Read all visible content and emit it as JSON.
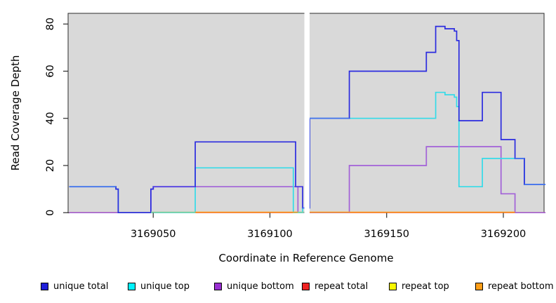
{
  "chart_data": {
    "type": "line",
    "subtype": "step-coverage",
    "title": "",
    "xlabel": "Coordinate in Reference Genome",
    "ylabel": "Read Coverage Depth",
    "x_axis": {
      "label": "Coordinate in Reference Genome",
      "ticks": [
        3169050,
        3169100,
        3169150,
        3169200
      ],
      "tick_labels": [
        "3169050",
        "3169100",
        "3169150",
        "3169200"
      ],
      "range": [
        3169014,
        3169218
      ]
    },
    "y_axis": {
      "label": "Read Coverage Depth",
      "ticks": [
        0,
        20,
        40,
        60,
        80
      ],
      "tick_labels": [
        "0",
        "20",
        "40",
        "60",
        "80"
      ],
      "range": [
        0,
        80
      ]
    },
    "panel_background": "#d9d9d9",
    "gap_band": {
      "x_from": 3169115,
      "x_to": 3169117,
      "color": "#ffffff"
    },
    "series": [
      {
        "name": "repeat top",
        "color": "#f0f000",
        "draw": true,
        "steps": [
          [
            3169014,
            0
          ],
          [
            3169218,
            0
          ]
        ]
      },
      {
        "name": "repeat total",
        "color": "#e25f7e",
        "draw": true,
        "steps": [
          [
            3169014,
            0
          ],
          [
            3169218,
            0
          ]
        ]
      },
      {
        "name": "repeat bottom",
        "color": "#ff9c1a",
        "draw": false,
        "steps": [
          [
            3169014,
            0
          ],
          [
            3169218,
            0
          ]
        ]
      },
      {
        "name": "unique bottom",
        "color": "#a261d8",
        "draw": true,
        "steps": [
          [
            3169014,
            0
          ],
          [
            3169049,
            10
          ],
          [
            3169050,
            11
          ],
          [
            3169112,
            0
          ],
          [
            3169134,
            20
          ],
          [
            3169167,
            28
          ],
          [
            3169199,
            8
          ],
          [
            3169205,
            0
          ],
          [
            3169218,
            0
          ]
        ]
      },
      {
        "name": "unique top",
        "color": "#35dbe8",
        "draw": true,
        "steps": [
          [
            3169014,
            11
          ],
          [
            3169034,
            10
          ],
          [
            3169035,
            0
          ],
          [
            3169068,
            19
          ],
          [
            3169110,
            0
          ],
          [
            3169114,
            2
          ],
          [
            3169117,
            40
          ],
          [
            3169171,
            51
          ],
          [
            3169175,
            50
          ],
          [
            3169179,
            49
          ],
          [
            3169180,
            45
          ],
          [
            3169181,
            11
          ],
          [
            3169191,
            23
          ],
          [
            3169209,
            12
          ],
          [
            3169218,
            12
          ]
        ]
      },
      {
        "name": "unique total",
        "color": "#2b2bdf",
        "draw": true,
        "steps": [
          [
            3169014,
            11
          ],
          [
            3169034,
            10
          ],
          [
            3169035,
            0
          ],
          [
            3169049,
            10
          ],
          [
            3169050,
            11
          ],
          [
            3169068,
            30
          ],
          [
            3169111,
            11
          ],
          [
            3169114,
            2
          ],
          [
            3169117,
            40
          ],
          [
            3169134,
            60
          ],
          [
            3169167,
            68
          ],
          [
            3169171,
            79
          ],
          [
            3169175,
            78
          ],
          [
            3169179,
            77
          ],
          [
            3169180,
            73
          ],
          [
            3169181,
            39
          ],
          [
            3169191,
            51
          ],
          [
            3169199,
            31
          ],
          [
            3169205,
            23
          ],
          [
            3169209,
            12
          ],
          [
            3169218,
            12
          ]
        ]
      }
    ],
    "baseline_segments": [
      {
        "from": 3169049,
        "to": 3169068,
        "value": 0,
        "color": "#8ccf9b"
      },
      {
        "from": 3169068,
        "to": 3169112,
        "value": 0,
        "color": "#ff9c1a"
      },
      {
        "from": 3169112,
        "to": 3169115,
        "value": 0,
        "color": "#8ccf9b"
      },
      {
        "from": 3169117,
        "to": 3169205,
        "value": 0,
        "color": "#ff9c1a"
      }
    ],
    "overlap_blend_segments": [
      {
        "from": 3169014,
        "to": 3169034,
        "value": 11,
        "color": "#4a78ec"
      },
      {
        "from": 3169050,
        "to": 3169068,
        "value": 11,
        "color": "#5846e2"
      },
      {
        "from": 3169111,
        "to": 3169114,
        "value": 11,
        "color": "#5846e2"
      },
      {
        "from": 3169114,
        "to": 3169117,
        "value": 2,
        "color": "#4a78ec"
      },
      {
        "from": 3169117,
        "to": 3169134,
        "value": 40,
        "color": "#4a78ec"
      },
      {
        "from": 3169205,
        "to": 3169209,
        "value": 23,
        "color": "#4a78ec"
      },
      {
        "from": 3169209,
        "to": 3169218,
        "value": 12,
        "color": "#4a78ec"
      }
    ],
    "legend_position": "bottom"
  },
  "legend": {
    "items": [
      {
        "label": "unique total",
        "color": "#1f1fd9"
      },
      {
        "label": "unique top",
        "color": "#00f2ff"
      },
      {
        "label": "unique bottom",
        "color": "#9a2fd2"
      },
      {
        "label": "repeat total",
        "color": "#ee2222"
      },
      {
        "label": "repeat top",
        "color": "#f8f800"
      },
      {
        "label": "repeat bottom",
        "color": "#ff9e17"
      }
    ]
  }
}
